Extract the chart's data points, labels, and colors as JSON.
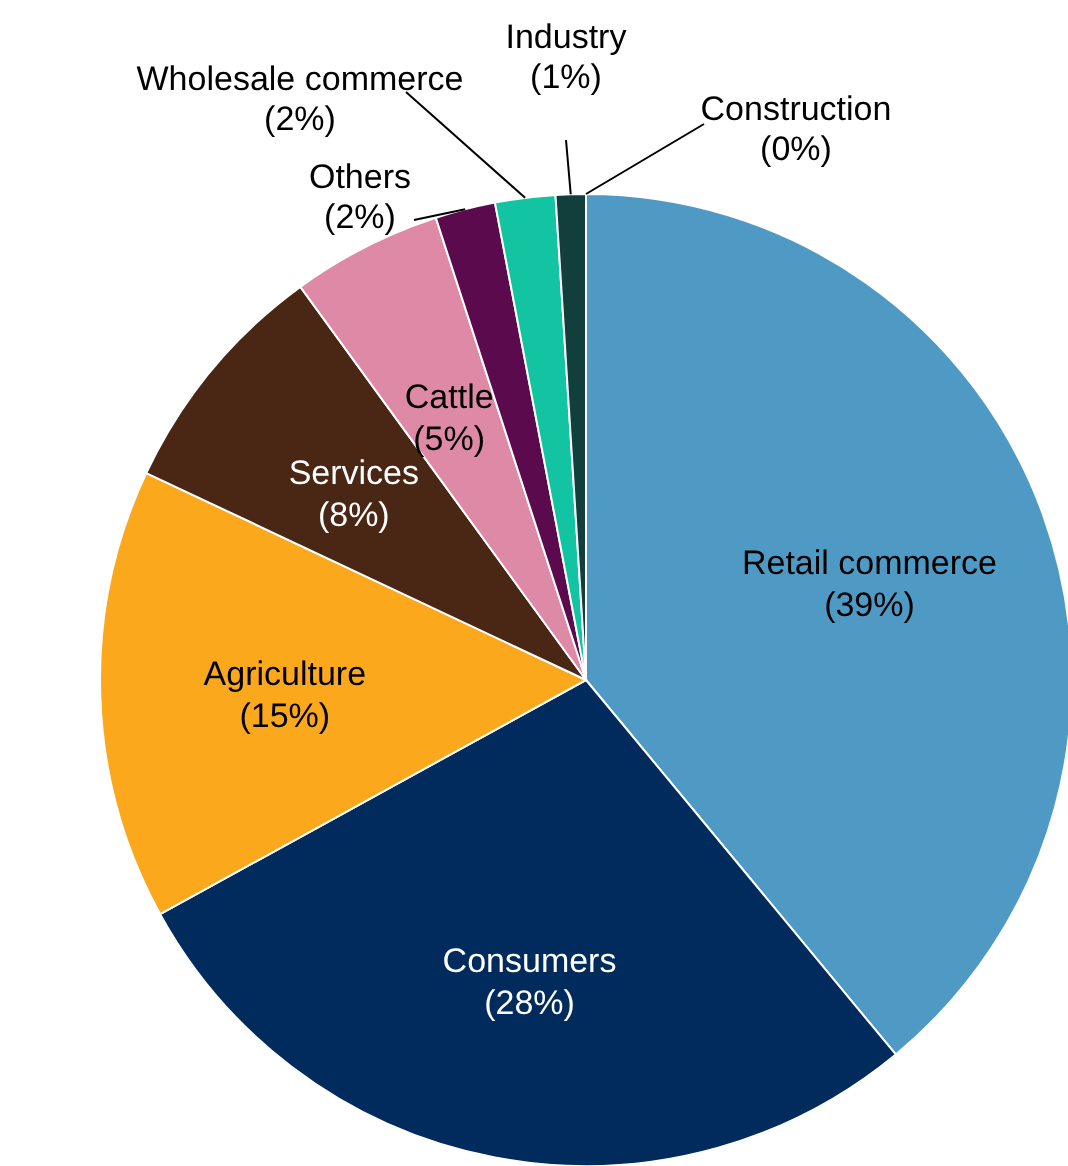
{
  "chart_data": {
    "type": "pie",
    "categories": [
      "Retail commerce",
      "Consumers",
      "Agriculture",
      "Services",
      "Cattle",
      "Others",
      "Wholesale commerce",
      "Industry",
      "Construction"
    ],
    "values": [
      39,
      28,
      15,
      8,
      5,
      2,
      2,
      1,
      0
    ],
    "colors": [
      "#4f9ac4",
      "#002b5c",
      "#fca81c",
      "#4a2714",
      "#de8aa6",
      "#5c0a4e",
      "#13c4a3",
      "#123e3c",
      "#f4a582"
    ],
    "value_labels": [
      "(39%)",
      "(28%)",
      "(15%)",
      "(8%)",
      "(5%)",
      "(2%)",
      "(2%)",
      "(1%)",
      "(0%)"
    ]
  }
}
